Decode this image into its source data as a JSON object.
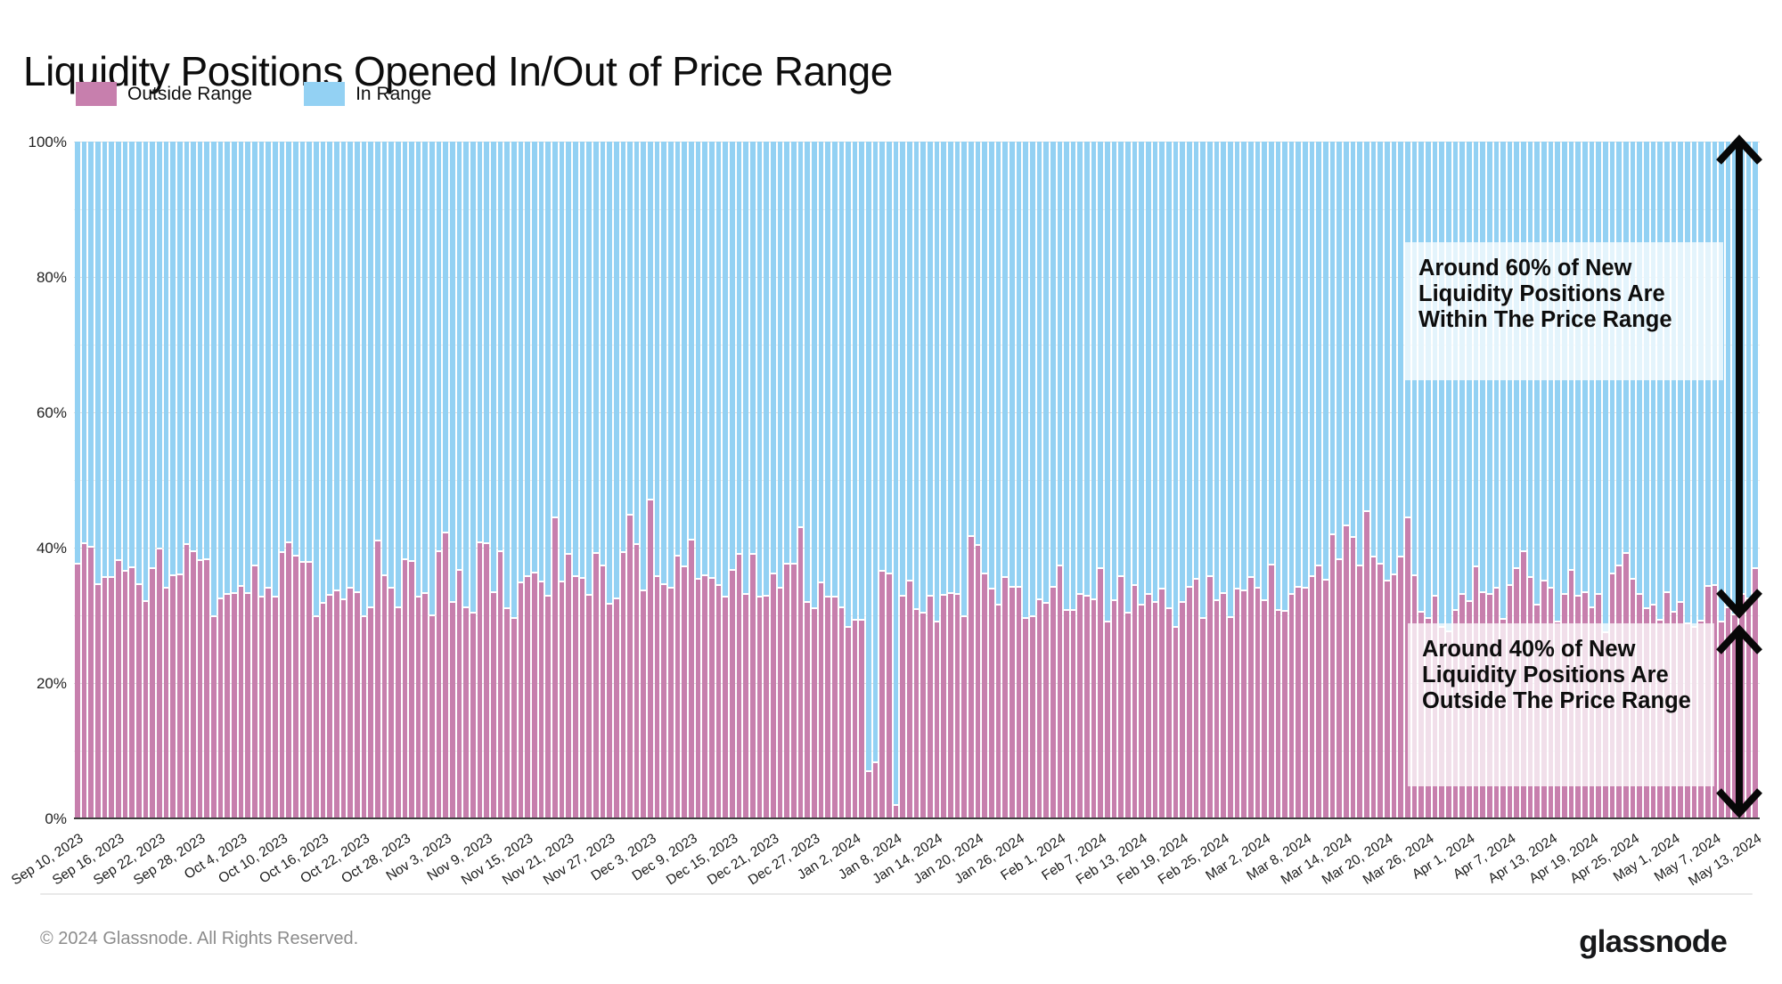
{
  "title": "Liquidity Positions Opened In/Out of Price Range",
  "legend": {
    "outside_label": "Outside Range",
    "in_label": "In Range"
  },
  "colors": {
    "outside_range": "#c77fad",
    "in_range": "#93d1f3",
    "gridline": "#e6e6e6",
    "axis_text": "#222222",
    "annotation_text": "#0d0d0d",
    "footer_text": "#8c8c8c"
  },
  "annotations": {
    "top": {
      "text": "Around 60% of New Liquidity Positions Are Within The Price Range"
    },
    "bottom": {
      "text": "Around 40% of New Liquidity Positions Are Outside The Price Range"
    }
  },
  "footer": {
    "copyright": "© 2024 Glassnode. All Rights Reserved.",
    "logo_text": "glassnode"
  },
  "chart_data": {
    "type": "bar",
    "stacked": true,
    "normalized_to_100pct": true,
    "title": "Liquidity Positions Opened In/Out of Price Range",
    "xlabel": "",
    "ylabel": "",
    "ylim": [
      0,
      100
    ],
    "y_ticks": [
      "0%",
      "20%",
      "40%",
      "60%",
      "80%",
      "100%"
    ],
    "grid": "horizontal, every 10%, labeled every 20%",
    "legend_position": "top-left",
    "x_start_date": "Sep 10, 2023",
    "x_end_date": "May 13, 2024",
    "x_frequency": "daily",
    "x_tick_every_n_bars": 6,
    "x_tick_labels": [
      "Sep 10, 2023",
      "Sep 16, 2023",
      "Sep 22, 2023",
      "Sep 28, 2023",
      "Oct 4, 2023",
      "Oct 10, 2023",
      "Oct 16, 2023",
      "Oct 22, 2023",
      "Oct 28, 2023",
      "Nov 3, 2023",
      "Nov 9, 2023",
      "Nov 15, 2023",
      "Nov 21, 2023",
      "Nov 27, 2023",
      "Dec 3, 2023",
      "Dec 9, 2023",
      "Dec 15, 2023",
      "Dec 21, 2023",
      "Dec 27, 2023",
      "Jan 2, 2024",
      "Jan 8, 2024",
      "Jan 14, 2024",
      "Jan 20, 2024",
      "Jan 26, 2024",
      "Feb 1, 2024",
      "Feb 7, 2024",
      "Feb 13, 2024",
      "Feb 19, 2024",
      "Feb 25, 2024",
      "Mar 2, 2024",
      "Mar 8, 2024",
      "Mar 14, 2024",
      "Mar 20, 2024",
      "Mar 26, 2024",
      "Apr 1, 2024",
      "Apr 7, 2024",
      "Apr 13, 2024",
      "Apr 19, 2024",
      "Apr 25, 2024",
      "May 1, 2024",
      "May 7, 2024",
      "May 13, 2024"
    ],
    "series": [
      {
        "name": "Outside Range",
        "color": "#c77fad",
        "unit": "%",
        "values": [
          37.5,
          40.5,
          40.0,
          34.5,
          35.5,
          35.5,
          38.0,
          36.5,
          37.0,
          34.5,
          32.0,
          36.8,
          39.7,
          34.0,
          35.8,
          35.9,
          40.4,
          39.4,
          38.0,
          38.1,
          29.8,
          32.4,
          33.0,
          33.2,
          34.2,
          33.1,
          37.2,
          32.6,
          34.0,
          32.6,
          39.2,
          40.6,
          38.7,
          37.8,
          37.8,
          29.7,
          31.7,
          32.9,
          33.5,
          32.2,
          34.0,
          33.3,
          29.7,
          31.0,
          40.9,
          35.8,
          34.0,
          31.0,
          38.2,
          37.9,
          32.6,
          33.1,
          29.9,
          39.4,
          42.1,
          31.8,
          36.6,
          31.1,
          30.2,
          40.6,
          40.5,
          33.3,
          39.4,
          30.9,
          29.5,
          34.8,
          35.6,
          36.2,
          34.9,
          32.8,
          44.3,
          34.9,
          38.9,
          35.7,
          35.4,
          32.9,
          39.1,
          37.3,
          31.6,
          32.4,
          39.2,
          44.8,
          40.4,
          33.5,
          47.0,
          35.6,
          34.5,
          34.0,
          38.7,
          37.1,
          41.1,
          35.2,
          35.8,
          35.4,
          34.3,
          32.6,
          36.6,
          39.0,
          33.0,
          38.9,
          32.6,
          32.8,
          36.1,
          33.9,
          37.5,
          37.5,
          42.9,
          31.9,
          30.9,
          34.8,
          32.6,
          32.6,
          31.0,
          28.1,
          29.2,
          29.2,
          6.8,
          8.2,
          36.5,
          36.0,
          1.8,
          32.7,
          35.0,
          30.8,
          30.2,
          32.7,
          28.9,
          32.9,
          33.1,
          33.0,
          29.7,
          41.6,
          40.2,
          36.1,
          33.8,
          31.5,
          35.5,
          34.1,
          34.1,
          29.5,
          29.8,
          32.2,
          31.7,
          34.1,
          37.2,
          30.6,
          30.6,
          33.0,
          32.8,
          32.2,
          36.8,
          28.9,
          32.1,
          35.7,
          30.2,
          34.3,
          31.5,
          33.0,
          31.9,
          33.8,
          30.9,
          28.2,
          31.9,
          34.1,
          35.3,
          29.5,
          35.7,
          32.1,
          33.2,
          29.6,
          33.8,
          33.6,
          35.5,
          34.0,
          32.1,
          37.4,
          30.6,
          30.5,
          33.0,
          34.1,
          34.0,
          35.6,
          37.2,
          35.1,
          41.9,
          38.1,
          43.2,
          41.5,
          37.2,
          45.2,
          38.5,
          37.5,
          35.0,
          35.9,
          38.5,
          44.4,
          35.8,
          30.4,
          29.5,
          32.8,
          28.2,
          27.5,
          30.6,
          33.0,
          32.0,
          37.1,
          33.3,
          33.0,
          34.0,
          29.3,
          34.4,
          36.8,
          39.3,
          35.5,
          31.5,
          35.0,
          34.0,
          28.9,
          33.0,
          36.6,
          32.8,
          33.3,
          31.0,
          33.0,
          27.4,
          36.1,
          37.2,
          39.1,
          35.3,
          33.0,
          30.9,
          31.4,
          29.2,
          33.3,
          30.4,
          31.9,
          28.7,
          28.2,
          29.1,
          34.2,
          34.3,
          29.0,
          31.0,
          30.0,
          33.0,
          32.4,
          36.8
        ]
      },
      {
        "name": "In Range",
        "color": "#93d1f3",
        "unit": "%",
        "values_note": "complement to 100% of Outside Range series"
      }
    ]
  }
}
